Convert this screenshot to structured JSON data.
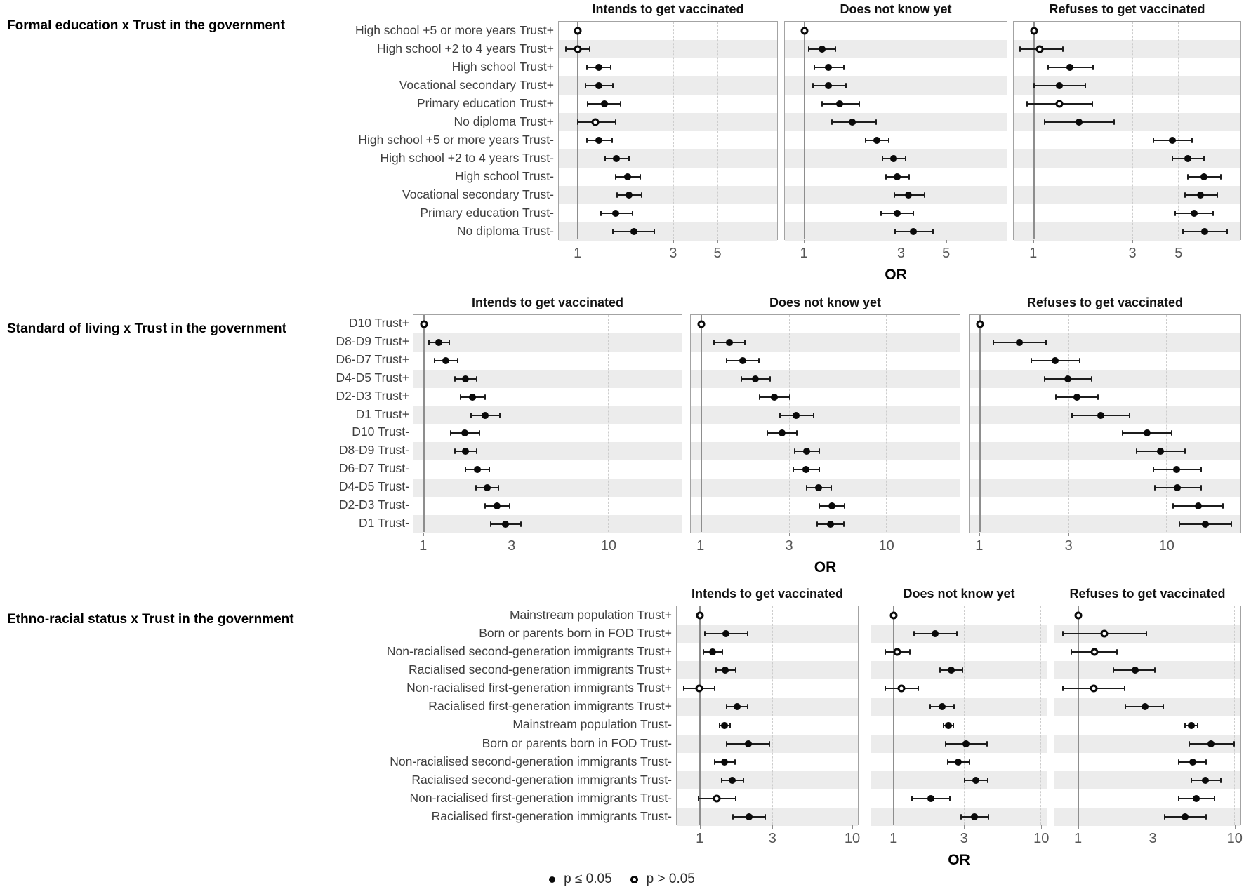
{
  "figure": {
    "or_axis_label": "OR",
    "legend": [
      {
        "marker": "filled-dot",
        "label": "p ≤ 0.05"
      },
      {
        "marker": "open-dot",
        "label": "p > 0.05"
      }
    ],
    "colors": {
      "stripe": "#ececec",
      "marker": "#0a0a0a",
      "ref_line": "#8d8d8d",
      "gridline": "#cdcdcd"
    }
  },
  "chart_data": [
    {
      "type": "forest",
      "group_title": "Formal education x Trust in the government",
      "categories": [
        "High school +5 or more years Trust+",
        "High school +2 to 4 years Trust+",
        "High school Trust+",
        "Vocational secondary Trust+",
        "Primary education Trust+",
        "No diploma Trust+",
        "High school +5 or more years Trust-",
        "High school +2 to 4 years Trust-",
        "High school Trust-",
        "Vocational secondary Trust-",
        "Primary education Trust-",
        "No diploma Trust-"
      ],
      "axis": {
        "scale": "log",
        "min": 0.8,
        "max": 10,
        "ticks": [
          1,
          3,
          5
        ],
        "gridlines": [
          3,
          5,
          10
        ],
        "xlabel": "OR"
      },
      "series": [
        {
          "name": "Intends to get vaccinated",
          "points": [
            {
              "or": 1.0,
              "lo": 1.0,
              "hi": 1.0,
              "sig": false
            },
            {
              "or": 1.0,
              "lo": 0.87,
              "hi": 1.14,
              "sig": false
            },
            {
              "or": 1.27,
              "lo": 1.11,
              "hi": 1.46,
              "sig": true
            },
            {
              "or": 1.27,
              "lo": 1.09,
              "hi": 1.5,
              "sig": true
            },
            {
              "or": 1.36,
              "lo": 1.12,
              "hi": 1.63,
              "sig": true
            },
            {
              "or": 1.22,
              "lo": 1.0,
              "hi": 1.55,
              "sig": false
            },
            {
              "or": 1.27,
              "lo": 1.11,
              "hi": 1.48,
              "sig": true
            },
            {
              "or": 1.56,
              "lo": 1.37,
              "hi": 1.8,
              "sig": true
            },
            {
              "or": 1.78,
              "lo": 1.55,
              "hi": 2.05,
              "sig": true
            },
            {
              "or": 1.8,
              "lo": 1.57,
              "hi": 2.08,
              "sig": true
            },
            {
              "or": 1.55,
              "lo": 1.3,
              "hi": 1.88,
              "sig": true
            },
            {
              "or": 1.9,
              "lo": 1.5,
              "hi": 2.42,
              "sig": true
            }
          ]
        },
        {
          "name": "Does not know yet",
          "points": [
            {
              "or": 1.0,
              "lo": 1.0,
              "hi": 1.0,
              "sig": false
            },
            {
              "or": 1.22,
              "lo": 1.05,
              "hi": 1.42,
              "sig": true
            },
            {
              "or": 1.31,
              "lo": 1.12,
              "hi": 1.56,
              "sig": true
            },
            {
              "or": 1.31,
              "lo": 1.1,
              "hi": 1.6,
              "sig": true
            },
            {
              "or": 1.49,
              "lo": 1.22,
              "hi": 1.86,
              "sig": true
            },
            {
              "or": 1.72,
              "lo": 1.37,
              "hi": 2.26,
              "sig": true
            },
            {
              "or": 2.28,
              "lo": 2.0,
              "hi": 2.62,
              "sig": true
            },
            {
              "or": 2.77,
              "lo": 2.43,
              "hi": 3.16,
              "sig": true
            },
            {
              "or": 2.88,
              "lo": 2.52,
              "hi": 3.28,
              "sig": true
            },
            {
              "or": 3.27,
              "lo": 2.78,
              "hi": 3.92,
              "sig": true
            },
            {
              "or": 2.88,
              "lo": 2.4,
              "hi": 3.46,
              "sig": true
            },
            {
              "or": 3.45,
              "lo": 2.8,
              "hi": 4.32,
              "sig": true
            }
          ]
        },
        {
          "name": "Refuses to get vaccinated",
          "points": [
            {
              "or": 1.0,
              "lo": 1.0,
              "hi": 1.0,
              "sig": false
            },
            {
              "or": 1.07,
              "lo": 0.86,
              "hi": 1.38,
              "sig": false
            },
            {
              "or": 1.49,
              "lo": 1.17,
              "hi": 1.93,
              "sig": true
            },
            {
              "or": 1.33,
              "lo": 1.0,
              "hi": 1.78,
              "sig": true
            },
            {
              "or": 1.33,
              "lo": 0.93,
              "hi": 1.92,
              "sig": false
            },
            {
              "or": 1.66,
              "lo": 1.13,
              "hi": 2.44,
              "sig": true
            },
            {
              "or": 4.68,
              "lo": 3.78,
              "hi": 5.82,
              "sig": true
            },
            {
              "or": 5.56,
              "lo": 4.68,
              "hi": 6.64,
              "sig": true
            },
            {
              "or": 6.65,
              "lo": 5.55,
              "hi": 8.05,
              "sig": true
            },
            {
              "or": 6.42,
              "lo": 5.4,
              "hi": 7.72,
              "sig": true
            },
            {
              "or": 5.96,
              "lo": 4.84,
              "hi": 7.38,
              "sig": true
            },
            {
              "or": 6.7,
              "lo": 5.28,
              "hi": 8.65,
              "sig": true
            }
          ]
        }
      ]
    },
    {
      "type": "forest",
      "group_title": "Standard of living x Trust in the government",
      "categories": [
        "D10 Trust+",
        "D8-D9 Trust+",
        "D6-D7 Trust+",
        "D4-D5 Trust+",
        "D2-D3 Trust+",
        "D1 Trust+",
        "D10 Trust-",
        "D8-D9 Trust-",
        "D6-D7 Trust-",
        "D4-D5 Trust-",
        "D2-D3 Trust-",
        "D1 Trust-"
      ],
      "axis": {
        "scale": "log",
        "min": 0.88,
        "max": 25,
        "ticks": [
          1,
          3,
          10
        ],
        "gridlines": [
          3,
          10
        ],
        "xlabel": "OR"
      },
      "series": [
        {
          "name": "Intends to get vaccinated",
          "points": [
            {
              "or": 1.0,
              "lo": 1.0,
              "hi": 1.0,
              "sig": false
            },
            {
              "or": 1.21,
              "lo": 1.07,
              "hi": 1.38,
              "sig": true
            },
            {
              "or": 1.32,
              "lo": 1.14,
              "hi": 1.53,
              "sig": true
            },
            {
              "or": 1.69,
              "lo": 1.47,
              "hi": 1.94,
              "sig": true
            },
            {
              "or": 1.84,
              "lo": 1.58,
              "hi": 2.15,
              "sig": true
            },
            {
              "or": 2.16,
              "lo": 1.81,
              "hi": 2.59,
              "sig": true
            },
            {
              "or": 1.67,
              "lo": 1.4,
              "hi": 2.0,
              "sig": true
            },
            {
              "or": 1.68,
              "lo": 1.47,
              "hi": 1.93,
              "sig": true
            },
            {
              "or": 1.95,
              "lo": 1.68,
              "hi": 2.27,
              "sig": true
            },
            {
              "or": 2.2,
              "lo": 1.92,
              "hi": 2.55,
              "sig": true
            },
            {
              "or": 2.5,
              "lo": 2.15,
              "hi": 2.93,
              "sig": true
            },
            {
              "or": 2.77,
              "lo": 2.31,
              "hi": 3.36,
              "sig": true
            }
          ]
        },
        {
          "name": "Does not know yet",
          "points": [
            {
              "or": 1.0,
              "lo": 1.0,
              "hi": 1.0,
              "sig": false
            },
            {
              "or": 1.42,
              "lo": 1.17,
              "hi": 1.72,
              "sig": true
            },
            {
              "or": 1.68,
              "lo": 1.38,
              "hi": 2.05,
              "sig": true
            },
            {
              "or": 1.97,
              "lo": 1.65,
              "hi": 2.37,
              "sig": true
            },
            {
              "or": 2.5,
              "lo": 2.07,
              "hi": 3.03,
              "sig": true
            },
            {
              "or": 3.27,
              "lo": 2.66,
              "hi": 4.06,
              "sig": true
            },
            {
              "or": 2.73,
              "lo": 2.28,
              "hi": 3.29,
              "sig": true
            },
            {
              "or": 3.72,
              "lo": 3.21,
              "hi": 4.34,
              "sig": true
            },
            {
              "or": 3.7,
              "lo": 3.16,
              "hi": 4.35,
              "sig": true
            },
            {
              "or": 4.33,
              "lo": 3.73,
              "hi": 5.04,
              "sig": true
            },
            {
              "or": 5.11,
              "lo": 4.37,
              "hi": 5.98,
              "sig": true
            },
            {
              "or": 5.0,
              "lo": 4.25,
              "hi": 5.89,
              "sig": true
            }
          ]
        },
        {
          "name": "Refuses to get vaccinated",
          "points": [
            {
              "or": 1.0,
              "lo": 1.0,
              "hi": 1.0,
              "sig": false
            },
            {
              "or": 1.63,
              "lo": 1.18,
              "hi": 2.26,
              "sig": true
            },
            {
              "or": 2.53,
              "lo": 1.88,
              "hi": 3.43,
              "sig": true
            },
            {
              "or": 2.97,
              "lo": 2.22,
              "hi": 3.98,
              "sig": true
            },
            {
              "or": 3.31,
              "lo": 2.55,
              "hi": 4.31,
              "sig": true
            },
            {
              "or": 4.45,
              "lo": 3.12,
              "hi": 6.36,
              "sig": true
            },
            {
              "or": 7.9,
              "lo": 5.85,
              "hi": 10.7,
              "sig": true
            },
            {
              "or": 9.3,
              "lo": 6.95,
              "hi": 12.6,
              "sig": true
            },
            {
              "or": 11.4,
              "lo": 8.55,
              "hi": 15.4,
              "sig": true
            },
            {
              "or": 11.5,
              "lo": 8.65,
              "hi": 15.4,
              "sig": true
            },
            {
              "or": 14.8,
              "lo": 10.9,
              "hi": 20.2,
              "sig": true
            },
            {
              "or": 16.2,
              "lo": 11.8,
              "hi": 22.4,
              "sig": true
            }
          ]
        }
      ]
    },
    {
      "type": "forest",
      "group_title": "Ethno-racial status x Trust in the government",
      "categories": [
        "Mainstream population Trust+",
        "Born or parents born in FOD Trust+",
        "Non-racialised second-generation immigrants Trust+",
        "Racialised second-generation immigrants Trust+",
        "Non-racialised first-generation immigrants Trust+",
        "Racialised first-generation immigrants Trust+",
        "Mainstream population Trust-",
        "Born or parents born in FOD Trust-",
        "Non-racialised second-generation immigrants Trust-",
        "Racialised second-generation immigrants Trust-",
        "Non-racialised first-generation immigrants Trust-",
        "Racialised first-generation immigrants Trust-"
      ],
      "axis": {
        "scale": "log",
        "min": 0.7,
        "max": 11,
        "ticks": [
          1,
          3,
          10
        ],
        "gridlines": [
          3,
          10
        ],
        "xlabel": "OR"
      },
      "series": [
        {
          "name": "Intends to get vaccinated",
          "points": [
            {
              "or": 1.0,
              "lo": 1.0,
              "hi": 1.0,
              "sig": false
            },
            {
              "or": 1.48,
              "lo": 1.07,
              "hi": 2.06,
              "sig": true
            },
            {
              "or": 1.21,
              "lo": 1.05,
              "hi": 1.4,
              "sig": true
            },
            {
              "or": 1.47,
              "lo": 1.27,
              "hi": 1.71,
              "sig": true
            },
            {
              "or": 0.99,
              "lo": 0.78,
              "hi": 1.25,
              "sig": false
            },
            {
              "or": 1.75,
              "lo": 1.5,
              "hi": 2.05,
              "sig": true
            },
            {
              "or": 1.45,
              "lo": 1.34,
              "hi": 1.57,
              "sig": true
            },
            {
              "or": 2.08,
              "lo": 1.5,
              "hi": 2.88,
              "sig": true
            },
            {
              "or": 1.45,
              "lo": 1.25,
              "hi": 1.7,
              "sig": true
            },
            {
              "or": 1.63,
              "lo": 1.38,
              "hi": 1.93,
              "sig": true
            },
            {
              "or": 1.29,
              "lo": 0.97,
              "hi": 1.72,
              "sig": false
            },
            {
              "or": 2.1,
              "lo": 1.65,
              "hi": 2.69,
              "sig": true
            }
          ]
        },
        {
          "name": "Does not know yet",
          "points": [
            {
              "or": 1.0,
              "lo": 1.0,
              "hi": 1.0,
              "sig": false
            },
            {
              "or": 1.91,
              "lo": 1.37,
              "hi": 2.68,
              "sig": true
            },
            {
              "or": 1.05,
              "lo": 0.87,
              "hi": 1.28,
              "sig": false
            },
            {
              "or": 2.45,
              "lo": 2.05,
              "hi": 2.94,
              "sig": true
            },
            {
              "or": 1.12,
              "lo": 0.87,
              "hi": 1.46,
              "sig": false
            },
            {
              "or": 2.12,
              "lo": 1.76,
              "hi": 2.57,
              "sig": true
            },
            {
              "or": 2.35,
              "lo": 2.18,
              "hi": 2.54,
              "sig": true
            },
            {
              "or": 3.11,
              "lo": 2.26,
              "hi": 4.29,
              "sig": true
            },
            {
              "or": 2.75,
              "lo": 2.32,
              "hi": 3.28,
              "sig": true
            },
            {
              "or": 3.63,
              "lo": 3.02,
              "hi": 4.38,
              "sig": true
            },
            {
              "or": 1.78,
              "lo": 1.32,
              "hi": 2.41,
              "sig": true
            },
            {
              "or": 3.55,
              "lo": 2.88,
              "hi": 4.39,
              "sig": true
            }
          ]
        },
        {
          "name": "Refuses to get vaccinated",
          "points": [
            {
              "or": 1.0,
              "lo": 1.0,
              "hi": 1.0,
              "sig": false
            },
            {
              "or": 1.47,
              "lo": 0.79,
              "hi": 2.73,
              "sig": false
            },
            {
              "or": 1.26,
              "lo": 0.9,
              "hi": 1.76,
              "sig": false
            },
            {
              "or": 2.31,
              "lo": 1.68,
              "hi": 3.09,
              "sig": true
            },
            {
              "or": 1.25,
              "lo": 0.79,
              "hi": 1.98,
              "sig": false
            },
            {
              "or": 2.67,
              "lo": 2.01,
              "hi": 3.49,
              "sig": true
            },
            {
              "or": 5.3,
              "lo": 4.83,
              "hi": 5.83,
              "sig": true
            },
            {
              "or": 7.1,
              "lo": 5.16,
              "hi": 10.0,
              "sig": true
            },
            {
              "or": 5.4,
              "lo": 4.4,
              "hi": 6.6,
              "sig": true
            },
            {
              "or": 6.55,
              "lo": 5.3,
              "hi": 8.2,
              "sig": true
            },
            {
              "or": 5.7,
              "lo": 4.4,
              "hi": 7.45,
              "sig": true
            },
            {
              "or": 4.85,
              "lo": 3.57,
              "hi": 6.6,
              "sig": true
            }
          ]
        }
      ]
    }
  ]
}
